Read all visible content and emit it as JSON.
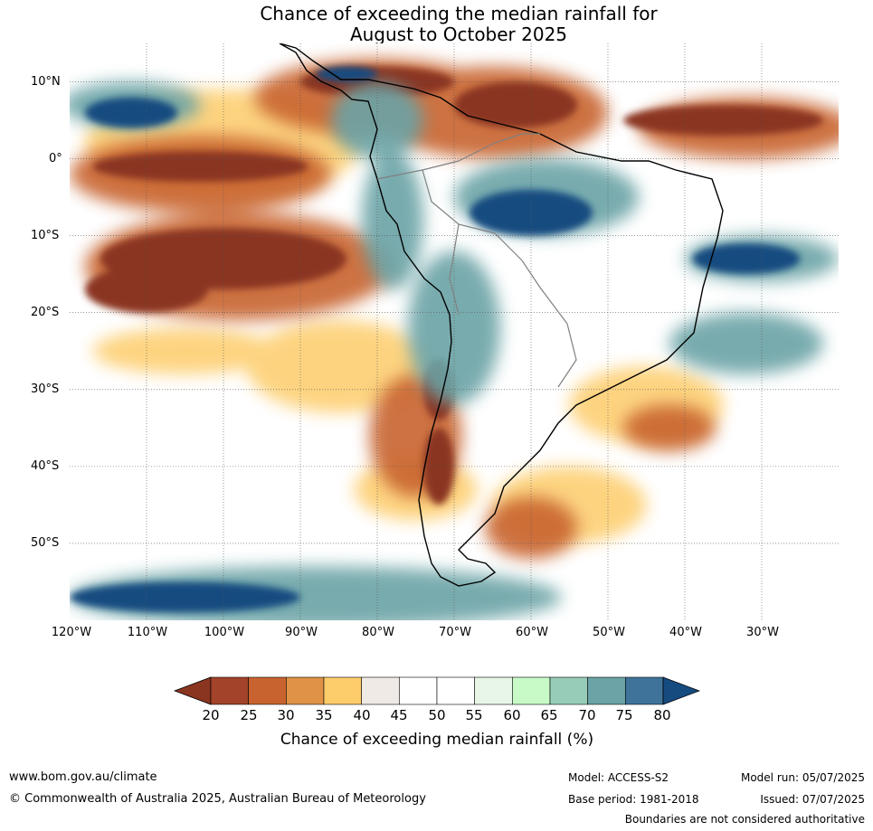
{
  "title": {
    "line1": "Chance of exceeding the median rainfall for",
    "line2": "August to October 2025"
  },
  "map": {
    "lat_labels": [
      "10°N",
      "0°",
      "10°S",
      "20°S",
      "30°S",
      "40°S",
      "50°S"
    ],
    "lon_labels": [
      "120°W",
      "110°W",
      "100°W",
      "90°W",
      "80°W",
      "70°W",
      "60°W",
      "50°W",
      "40°W",
      "30°W"
    ],
    "lat_range": [
      -60,
      15
    ],
    "lon_range": [
      -120,
      -20
    ],
    "gridlines": true,
    "regions": {
      "very_dry": [
        {
          "lon": -80,
          "lat": 10,
          "rx": 10,
          "ry": 2
        },
        {
          "lon": -62,
          "lat": 7,
          "rx": 8,
          "ry": 3
        },
        {
          "lon": -35,
          "lat": 5,
          "rx": 13,
          "ry": 2
        },
        {
          "lon": -103,
          "lat": -1,
          "rx": 14,
          "ry": 2
        },
        {
          "lon": -100,
          "lat": -13,
          "rx": 16,
          "ry": 4
        },
        {
          "lon": -110,
          "lat": -17,
          "rx": 8,
          "ry": 3
        },
        {
          "lon": -72,
          "lat": -40,
          "rx": 2,
          "ry": 5
        },
        {
          "lon": -72,
          "lat": -30,
          "rx": 2,
          "ry": 4
        }
      ],
      "dry": [
        {
          "lon": -80,
          "lat": 8,
          "rx": 16,
          "ry": 5
        },
        {
          "lon": -65,
          "lat": 6,
          "rx": 15,
          "ry": 6
        },
        {
          "lon": -32,
          "lat": 4,
          "rx": 14,
          "ry": 4
        },
        {
          "lon": -103,
          "lat": -2,
          "rx": 17,
          "ry": 5
        },
        {
          "lon": -98,
          "lat": -14,
          "rx": 20,
          "ry": 7
        },
        {
          "lon": -75,
          "lat": -36,
          "rx": 6,
          "ry": 8
        },
        {
          "lon": -60,
          "lat": -48,
          "rx": 6,
          "ry": 4
        },
        {
          "lon": -42,
          "lat": -35,
          "rx": 6,
          "ry": 3
        }
      ],
      "slightly_dry": [
        {
          "lon": -85,
          "lat": -27,
          "rx": 12,
          "ry": 6
        },
        {
          "lon": -75,
          "lat": -43,
          "rx": 8,
          "ry": 4
        },
        {
          "lon": -55,
          "lat": -45,
          "rx": 10,
          "ry": 5
        },
        {
          "lon": -45,
          "lat": -32,
          "rx": 10,
          "ry": 5
        },
        {
          "lon": -105,
          "lat": -25,
          "rx": 12,
          "ry": 3
        },
        {
          "lon": -100,
          "lat": 2,
          "rx": 18,
          "ry": 7
        }
      ],
      "wet": [
        {
          "lon": -58,
          "lat": -5,
          "rx": 12,
          "ry": 5
        },
        {
          "lon": -70,
          "lat": -22,
          "rx": 6,
          "ry": 10
        },
        {
          "lon": -78,
          "lat": -8,
          "rx": 4,
          "ry": 9
        },
        {
          "lon": -88,
          "lat": -57,
          "rx": 32,
          "ry": 4
        },
        {
          "lon": -30,
          "lat": -13,
          "rx": 10,
          "ry": 3
        },
        {
          "lon": -32,
          "lat": -24,
          "rx": 10,
          "ry": 4
        },
        {
          "lon": -112,
          "lat": 7,
          "rx": 9,
          "ry": 3
        },
        {
          "lon": -80,
          "lat": 5,
          "rx": 6,
          "ry": 5
        }
      ],
      "very_wet": [
        {
          "lon": -60,
          "lat": -7,
          "rx": 8,
          "ry": 3
        },
        {
          "lon": -112,
          "lat": 6,
          "rx": 6,
          "ry": 2
        },
        {
          "lon": -84,
          "lat": 11,
          "rx": 4,
          "ry": 1
        },
        {
          "lon": -32,
          "lat": -13,
          "rx": 7,
          "ry": 2
        },
        {
          "lon": -105,
          "lat": -57,
          "rx": 15,
          "ry": 2
        }
      ]
    }
  },
  "colorbar": {
    "ticks": [
      "20",
      "25",
      "30",
      "35",
      "40",
      "45",
      "50",
      "55",
      "60",
      "65",
      "70",
      "75",
      "80"
    ],
    "colors": [
      "#a2432a",
      "#c8632f",
      "#e09347",
      "#fdcc6b",
      "#efeae5",
      "#ffffff",
      "#ffffff",
      "#e8f6e8",
      "#c8fac8",
      "#97cdb8",
      "#6ba3a6",
      "#3f7399"
    ],
    "under_color": "#8a3520",
    "over_color": "#164b80",
    "label": "Chance of exceeding median rainfall (%)"
  },
  "footer": {
    "website": "www.bom.gov.au/climate",
    "copyright": "© Commonwealth of Australia 2025, Australian Bureau of Meteorology",
    "model": "Model: ACCESS-S2",
    "base_period": "Base period: 1981-2018",
    "model_run": "Model run: 05/07/2025",
    "issued": "Issued: 07/07/2025",
    "disclaimer": "Boundaries are not considered authoritative"
  }
}
